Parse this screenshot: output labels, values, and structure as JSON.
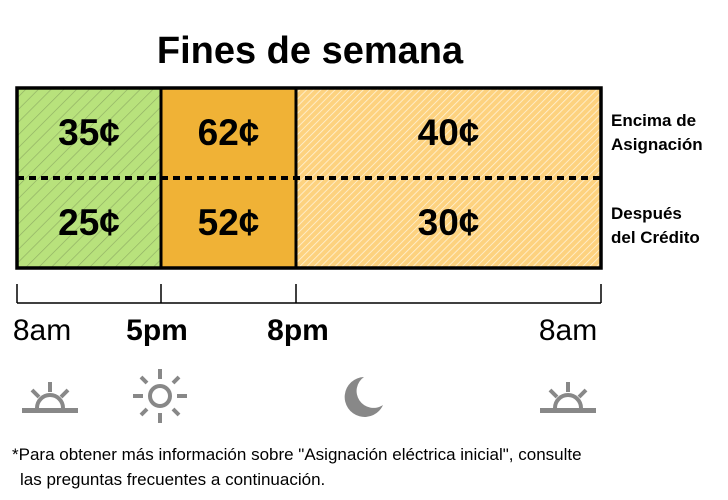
{
  "title": "Fines de semana",
  "rows": [
    "Encima de Asignación",
    "Después del Crédito"
  ],
  "row_label_lines": [
    [
      "Encima de",
      "Asignación"
    ],
    [
      "Después",
      "del Crédito"
    ]
  ],
  "periods": [
    {
      "start": "8am",
      "above": "35¢",
      "after": "25¢",
      "color": "#b8e27c",
      "pattern": "green-hatch"
    },
    {
      "start": "5pm",
      "above": "62¢",
      "after": "52¢",
      "color": "#f0b236",
      "pattern": "solid"
    },
    {
      "start": "8pm",
      "above": "40¢",
      "after": "30¢",
      "color": "#fdd27f",
      "pattern": "light-orange-hatch"
    }
  ],
  "timeline": [
    {
      "label": "8am",
      "bold": false,
      "icon": "sunrise-icon"
    },
    {
      "label": "5pm",
      "bold": true,
      "icon": "sun-icon"
    },
    {
      "label": "8pm",
      "bold": true,
      "icon": "moon-icon"
    },
    {
      "label": "8am",
      "bold": false,
      "icon": "sunrise-icon"
    }
  ],
  "icon_color": "#888888",
  "footnote": [
    "*Para obtener más información sobre \"Asignación eléctrica inicial\", consulte",
    "las preguntas frecuentes a continuación."
  ]
}
